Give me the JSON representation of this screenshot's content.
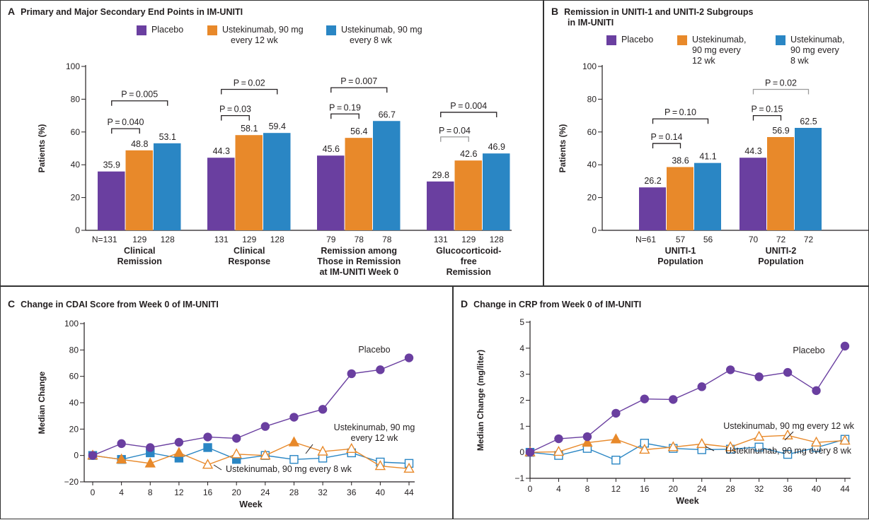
{
  "colors": {
    "placebo": "#6a3fa0",
    "ust12": "#e8892a",
    "ust8": "#2a86c4",
    "axis": "#231f20",
    "pgray": "#9a9a9a"
  },
  "panels": {
    "A": {
      "letter": "A",
      "title": "Primary and Major Secondary End Points in IM-UNITI"
    },
    "B": {
      "letter": "B",
      "title_line1": "Remission in UNITI-1 and UNITI-2 Subgroups",
      "title_line2": "in IM-UNITI"
    },
    "C": {
      "letter": "C",
      "title": "Change in CDAI Score from Week 0 of IM-UNITI"
    },
    "D": {
      "letter": "D",
      "title": "Change in CRP from Week 0 of IM-UNITI"
    }
  },
  "legendA": {
    "placebo": "Placebo",
    "ust12": [
      "Ustekinumab, 90 mg",
      "every 12 wk"
    ],
    "ust8": [
      "Ustekinumab, 90 mg",
      "every 8 wk"
    ]
  },
  "legendB": {
    "placebo": "Placebo",
    "ust12": [
      "Ustekinumab,",
      "90 mg every",
      "12 wk"
    ],
    "ust8": [
      "Ustekinumab,",
      "90 mg  every",
      "8 wk"
    ]
  },
  "chart_data": [
    {
      "type": "bar",
      "title": "Primary and Major Secondary End Points in IM-UNITI",
      "ylabel": "Patients (%)",
      "ylim": [
        0,
        100
      ],
      "yticks": [
        0,
        20,
        40,
        60,
        80,
        100
      ],
      "legend": "top",
      "n_prefix": "N=",
      "categories": [
        [
          "Clinical",
          "Remission"
        ],
        [
          "Clinical",
          "Response"
        ],
        [
          "Remission among",
          "Those in Remission",
          "at IM-UNITI Week 0"
        ],
        [
          "Glucocorticoid-",
          "free",
          "Remission"
        ]
      ],
      "series": [
        {
          "name": "Placebo",
          "color": "#6a3fa0",
          "values": [
            35.9,
            44.3,
            45.6,
            29.8
          ],
          "labels": [
            "35.9",
            "44.3",
            "45.6",
            "29.8"
          ],
          "n": [
            "131",
            "131",
            "79",
            "131"
          ]
        },
        {
          "name": "Ustekinumab, 90 mg every 12 wk",
          "color": "#e8892a",
          "values": [
            48.8,
            58.1,
            56.4,
            42.6
          ],
          "labels": [
            "48.8",
            "58.1",
            "56.4",
            "42.6"
          ],
          "n": [
            "129",
            "129",
            "78",
            "129"
          ]
        },
        {
          "name": "Ustekinumab, 90 mg every 8 wk",
          "color": "#2a86c4",
          "values": [
            53.1,
            59.4,
            66.7,
            46.9
          ],
          "labels": [
            "53.1",
            "59.4",
            "66.7",
            "46.9"
          ],
          "n": [
            "128",
            "128",
            "78",
            "128"
          ]
        }
      ],
      "pvalues": [
        {
          "group": 0,
          "from": 0,
          "to": 1,
          "level": 62,
          "text": "P=0.040",
          "gray": false
        },
        {
          "group": 0,
          "from": 0,
          "to": 2,
          "level": 79,
          "text": "P=0.005",
          "gray": false
        },
        {
          "group": 1,
          "from": 0,
          "to": 1,
          "level": 70,
          "text": "P=0.03",
          "gray": false
        },
        {
          "group": 1,
          "from": 0,
          "to": 2,
          "level": 86,
          "text": "P=0.02",
          "gray": false
        },
        {
          "group": 2,
          "from": 0,
          "to": 1,
          "level": 71,
          "text": "P=0.19",
          "gray": false
        },
        {
          "group": 2,
          "from": 0,
          "to": 2,
          "level": 87,
          "text": "P=0.007",
          "gray": false
        },
        {
          "group": 3,
          "from": 0,
          "to": 1,
          "level": 57,
          "text": "P=0.04",
          "gray": true
        },
        {
          "group": 3,
          "from": 0,
          "to": 2,
          "level": 72,
          "text": "P=0.004",
          "gray": false
        }
      ]
    },
    {
      "type": "bar",
      "title": "Remission in UNITI-1 and UNITI-2 Subgroups in IM-UNITI",
      "ylabel": "Patients (%)",
      "ylim": [
        0,
        100
      ],
      "yticks": [
        0,
        20,
        40,
        60,
        80,
        100
      ],
      "legend": "top",
      "n_prefix": "N=",
      "categories": [
        [
          "UNITI-1",
          "Population"
        ],
        [
          "UNITI-2",
          "Population"
        ]
      ],
      "series": [
        {
          "name": "Placebo",
          "color": "#6a3fa0",
          "values": [
            26.2,
            44.3
          ],
          "labels": [
            "26.2",
            "44.3"
          ],
          "n": [
            "61",
            "70"
          ]
        },
        {
          "name": "Ustekinumab, 90 mg every 12 wk",
          "color": "#e8892a",
          "values": [
            38.6,
            56.9
          ],
          "labels": [
            "38.6",
            "56.9"
          ],
          "n": [
            "57",
            "72"
          ]
        },
        {
          "name": "Ustekinumab, 90 mg every 8 wk",
          "color": "#2a86c4",
          "values": [
            41.1,
            62.5
          ],
          "labels": [
            "41.1",
            "62.5"
          ],
          "n": [
            "56",
            "72"
          ]
        }
      ],
      "pvalues": [
        {
          "group": 0,
          "from": 0,
          "to": 1,
          "level": 53,
          "text": "P=0.14",
          "gray": false
        },
        {
          "group": 0,
          "from": 0,
          "to": 2,
          "level": 68,
          "text": "P=0.10",
          "gray": false
        },
        {
          "group": 1,
          "from": 0,
          "to": 1,
          "level": 70,
          "text": "P=0.15",
          "gray": false
        },
        {
          "group": 1,
          "from": 0,
          "to": 2,
          "level": 86,
          "text": "P=0.02",
          "gray": true
        }
      ]
    },
    {
      "type": "line",
      "title": "Change in CDAI Score from Week 0 of IM-UNITI",
      "xlabel": "Week",
      "ylabel": "Median Change",
      "ylim": [
        -20,
        100
      ],
      "yticks": [
        -20,
        0,
        20,
        40,
        60,
        80,
        100
      ],
      "xticks": [
        0,
        4,
        8,
        12,
        16,
        20,
        24,
        28,
        32,
        36,
        40,
        44
      ],
      "x": [
        0,
        4,
        8,
        12,
        16,
        20,
        24,
        28,
        32,
        36,
        40,
        44
      ],
      "series": [
        {
          "name": "Placebo",
          "color": "#6a3fa0",
          "marker": "circle",
          "values": [
            0,
            9,
            6,
            10,
            14,
            13,
            22,
            29,
            35,
            62,
            65,
            74
          ]
        },
        {
          "name": "Ustekinumab, 90 mg every 12 wk",
          "color": "#e8892a",
          "marker": "triangle",
          "filled": [
            false,
            true,
            true,
            true,
            false,
            false,
            false,
            true,
            false,
            false,
            false,
            false
          ],
          "values": [
            0,
            -3,
            -6,
            2,
            -7,
            1,
            0,
            10,
            3,
            5,
            -8,
            -10
          ]
        },
        {
          "name": "Ustekinumab, 90 mg every 8 wk",
          "color": "#2a86c4",
          "marker": "square",
          "filled": [
            true,
            true,
            true,
            true,
            true,
            true,
            false,
            false,
            false,
            false,
            false,
            false
          ],
          "values": [
            0,
            -3,
            2,
            -2,
            6,
            -3,
            0,
            -3,
            -2,
            2,
            -5,
            -6
          ]
        }
      ],
      "annotations": [
        {
          "series": 0,
          "text": [
            "Placebo"
          ]
        },
        {
          "series": 1,
          "text": [
            "Ustekinumab, 90 mg",
            "every 12 wk"
          ]
        },
        {
          "series": 2,
          "text": [
            "Ustekinumab, 90 mg every 8 wk"
          ]
        }
      ]
    },
    {
      "type": "line",
      "title": "Change in CRP from Week 0 of IM-UNITI",
      "xlabel": "Week",
      "ylabel": "Median Change (mg/liter)",
      "ylim": [
        -1,
        5
      ],
      "yticks": [
        -1,
        0,
        1,
        2,
        3,
        4,
        5
      ],
      "xticks": [
        0,
        4,
        8,
        12,
        16,
        20,
        24,
        28,
        32,
        36,
        40,
        44
      ],
      "x": [
        0,
        4,
        8,
        12,
        16,
        20,
        24,
        28,
        32,
        36,
        40,
        44
      ],
      "series": [
        {
          "name": "Placebo",
          "color": "#6a3fa0",
          "marker": "circle",
          "values": [
            0,
            0.52,
            0.6,
            1.5,
            2.05,
            2.03,
            2.52,
            3.17,
            2.9,
            3.07,
            2.37,
            4.08
          ]
        },
        {
          "name": "Ustekinumab, 90 mg every 12 wk",
          "color": "#e8892a",
          "marker": "triangle",
          "filled": [
            false,
            false,
            true,
            true,
            false,
            false,
            false,
            false,
            false,
            false,
            false,
            false
          ],
          "values": [
            0,
            0.02,
            0.37,
            0.5,
            0.1,
            0.2,
            0.32,
            0.2,
            0.6,
            0.65,
            0.38,
            0.45
          ]
        },
        {
          "name": "Ustekinumab, 90 mg every 8 wk",
          "color": "#2a86c4",
          "marker": "square",
          "filled": [
            true,
            false,
            false,
            false,
            false,
            false,
            false,
            false,
            false,
            false,
            false,
            false
          ],
          "values": [
            0,
            -0.12,
            0.15,
            -0.3,
            0.35,
            0.15,
            0.1,
            0.12,
            0.2,
            -0.08,
            0.18,
            0.5
          ]
        }
      ],
      "annotations": [
        {
          "series": 0,
          "text": [
            "Placebo"
          ]
        },
        {
          "series": 1,
          "text": [
            "Ustekinumab, 90 mg every 12 wk"
          ]
        },
        {
          "series": 2,
          "text": [
            "Ustekinumab, 90 mg every 8 wk"
          ]
        }
      ]
    }
  ]
}
